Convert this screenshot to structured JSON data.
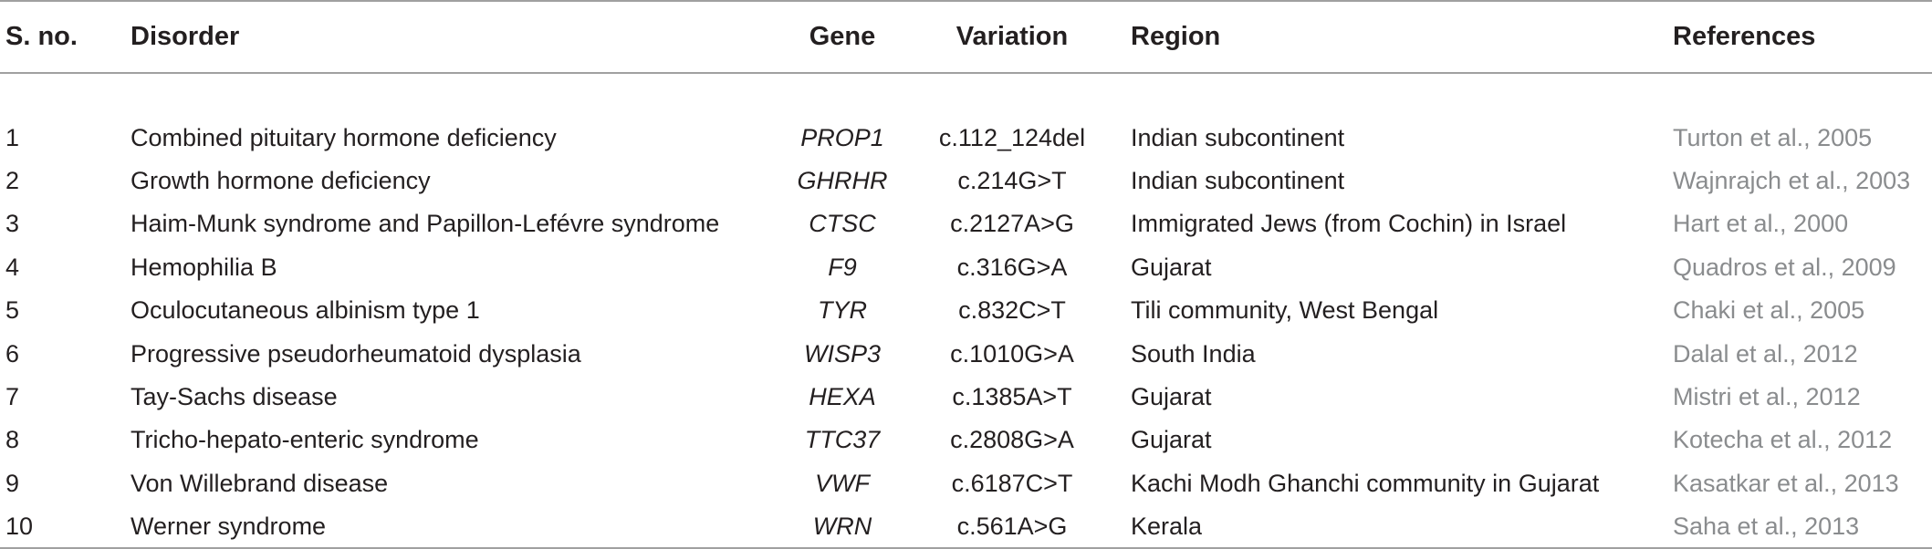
{
  "table": {
    "headers": {
      "sno": "S. no.",
      "disorder": "Disorder",
      "gene": "Gene",
      "variation": "Variation",
      "region": "Region",
      "references": "References"
    },
    "rows": [
      {
        "sno": "1",
        "disorder": "Combined pituitary hormone deficiency",
        "gene": "PROP1",
        "variation": "c.112_124del",
        "region": "Indian subcontinent",
        "reference": "Turton et al., 2005"
      },
      {
        "sno": "2",
        "disorder": "Growth hormone deficiency",
        "gene": "GHRHR",
        "variation": "c.214G>T",
        "region": "Indian subcontinent",
        "reference": "Wajnrajch et al., 2003"
      },
      {
        "sno": "3",
        "disorder": "Haim-Munk syndrome and Papillon-Lefévre syndrome",
        "gene": "CTSC",
        "variation": "c.2127A>G",
        "region": "Immigrated Jews (from Cochin) in Israel",
        "reference": "Hart et al., 2000"
      },
      {
        "sno": "4",
        "disorder": "Hemophilia B",
        "gene": "F9",
        "variation": "c.316G>A",
        "region": "Gujarat",
        "reference": "Quadros et al., 2009"
      },
      {
        "sno": "5",
        "disorder": "Oculocutaneous albinism type 1",
        "gene": "TYR",
        "variation": "c.832C>T",
        "region": "Tili community, West Bengal",
        "reference": "Chaki et al., 2005"
      },
      {
        "sno": "6",
        "disorder": "Progressive pseudorheumatoid dysplasia",
        "gene": "WISP3",
        "variation": "c.1010G>A",
        "region": "South India",
        "reference": "Dalal et al., 2012"
      },
      {
        "sno": "7",
        "disorder": "Tay-Sachs disease",
        "gene": "HEXA",
        "variation": "c.1385A>T",
        "region": "Gujarat",
        "reference": "Mistri et al., 2012"
      },
      {
        "sno": "8",
        "disorder": "Tricho-hepato-enteric syndrome",
        "gene": "TTC37",
        "variation": "c.2808G>A",
        "region": "Gujarat",
        "reference": "Kotecha et al., 2012"
      },
      {
        "sno": "9",
        "disorder": "Von Willebrand disease",
        "gene": "VWF",
        "variation": "c.6187C>T",
        "region": "Kachi Modh Ghanchi community in Gujarat",
        "reference": "Kasatkar et al., 2013"
      },
      {
        "sno": "10",
        "disorder": "Werner syndrome",
        "gene": "WRN",
        "variation": "c.561A>G",
        "region": "Kerala",
        "reference": "Saha et al., 2013"
      }
    ]
  },
  "colors": {
    "text": "#231f20",
    "reference_text": "#8a8c8e",
    "rule": "#a0a0a0"
  }
}
